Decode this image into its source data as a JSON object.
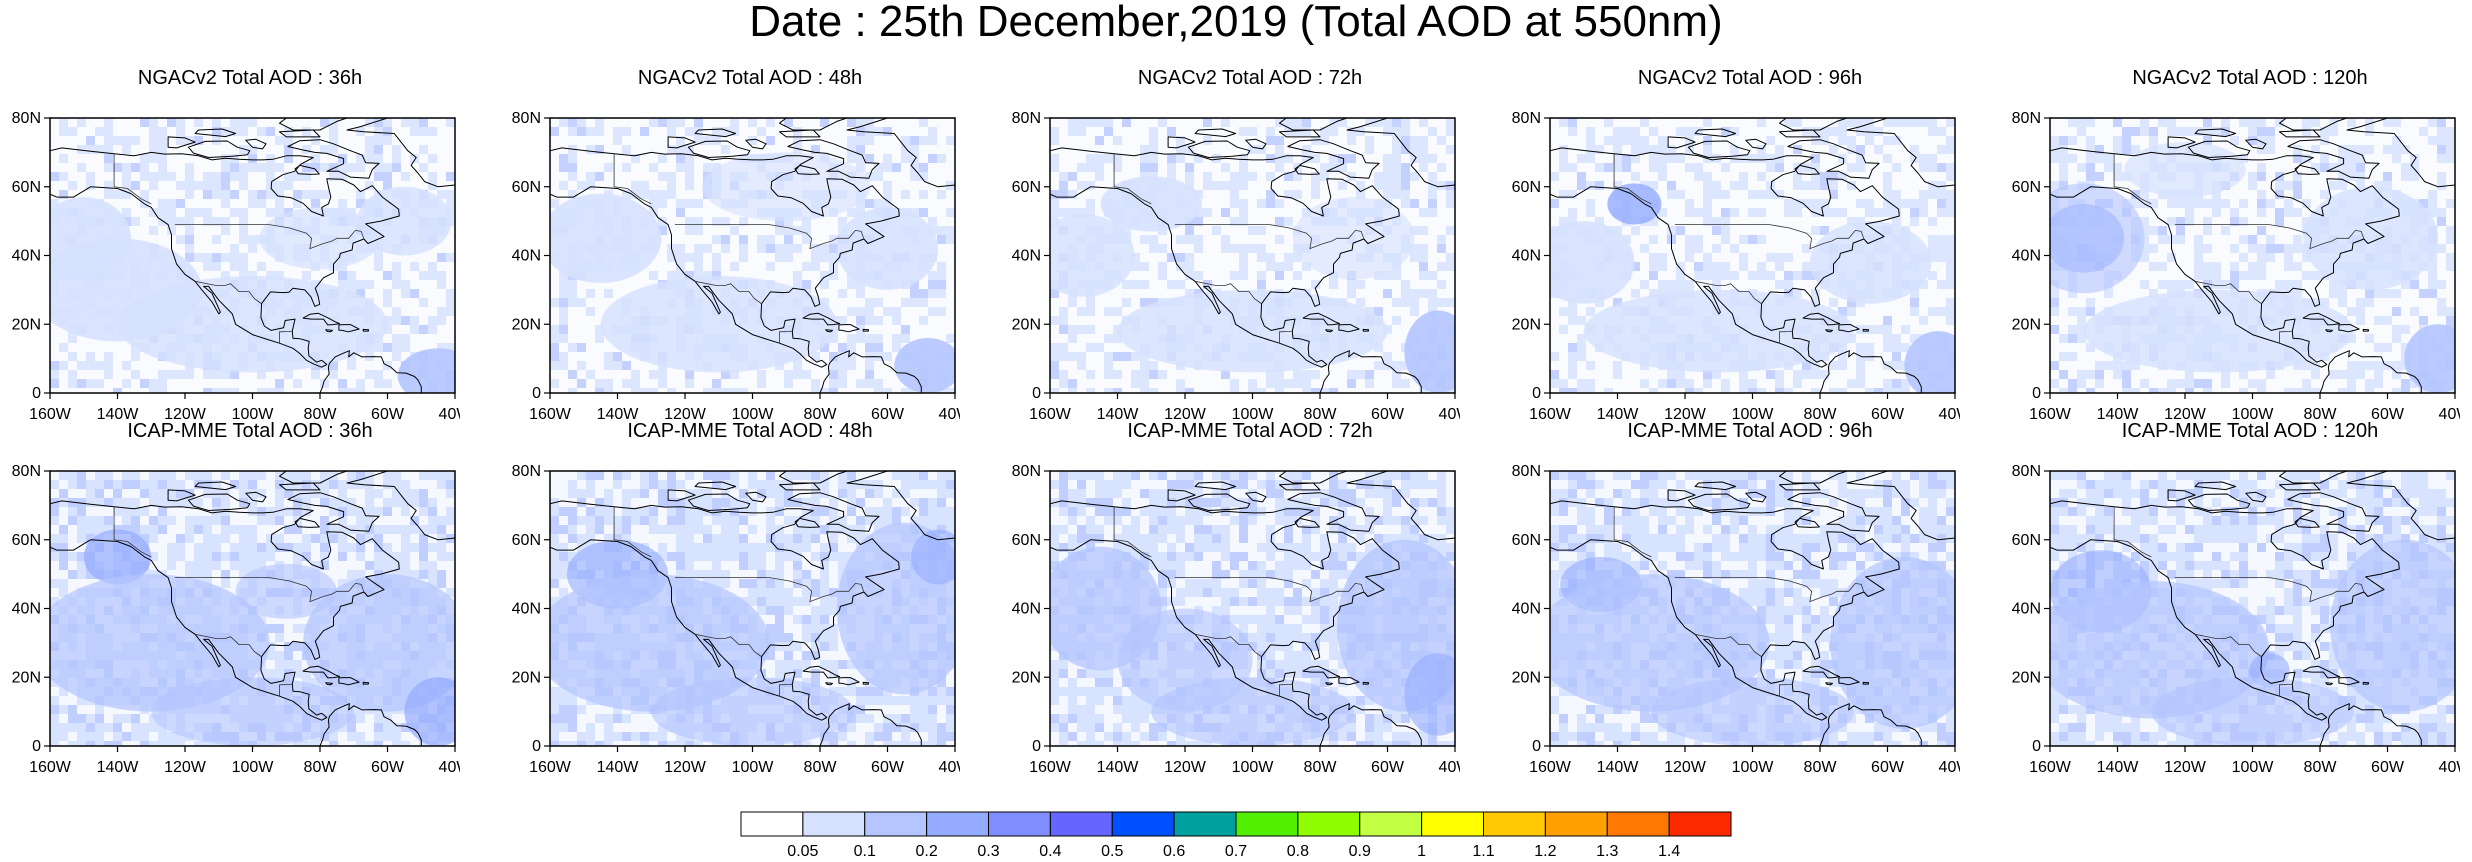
{
  "title": "Date : 25th December,2019 (Total AOD at 550nm)",
  "panels": [
    {
      "title": "NGACv2 Total AOD : 36h"
    },
    {
      "title": "NGACv2 Total AOD : 48h"
    },
    {
      "title": "NGACv2 Total AOD : 72h"
    },
    {
      "title": "NGACv2 Total AOD : 96h"
    },
    {
      "title": "NGACv2 Total AOD : 120h"
    },
    {
      "title": "ICAP-MME Total AOD : 36h"
    },
    {
      "title": "ICAP-MME Total AOD : 48h"
    },
    {
      "title": "ICAP-MME Total AOD : 72h"
    },
    {
      "title": "ICAP-MME Total AOD : 96h"
    },
    {
      "title": "ICAP-MME Total AOD : 120h"
    }
  ],
  "axes": {
    "lon_ticks": [
      "160W",
      "140W",
      "120W",
      "100W",
      "80W",
      "60W",
      "40W"
    ],
    "lat_ticks": [
      "0",
      "20N",
      "40N",
      "60N",
      "80N"
    ]
  },
  "colorbar": {
    "colors": [
      "#ffffff",
      "#d6e1ff",
      "#b4c5ff",
      "#94abff",
      "#7f8dff",
      "#6466ff",
      "#0050ff",
      "#00a0a0",
      "#51f000",
      "#8fff00",
      "#c3ff43",
      "#ffff00",
      "#ffc800",
      "#ffa000",
      "#ff7800",
      "#ff2b00"
    ],
    "labels": [
      "0.05",
      "0.1",
      "0.2",
      "0.3",
      "0.4",
      "0.5",
      "0.6",
      "0.7",
      "0.8",
      "0.9",
      "1",
      "1.1",
      "1.2",
      "1.3",
      "1.4"
    ]
  }
}
